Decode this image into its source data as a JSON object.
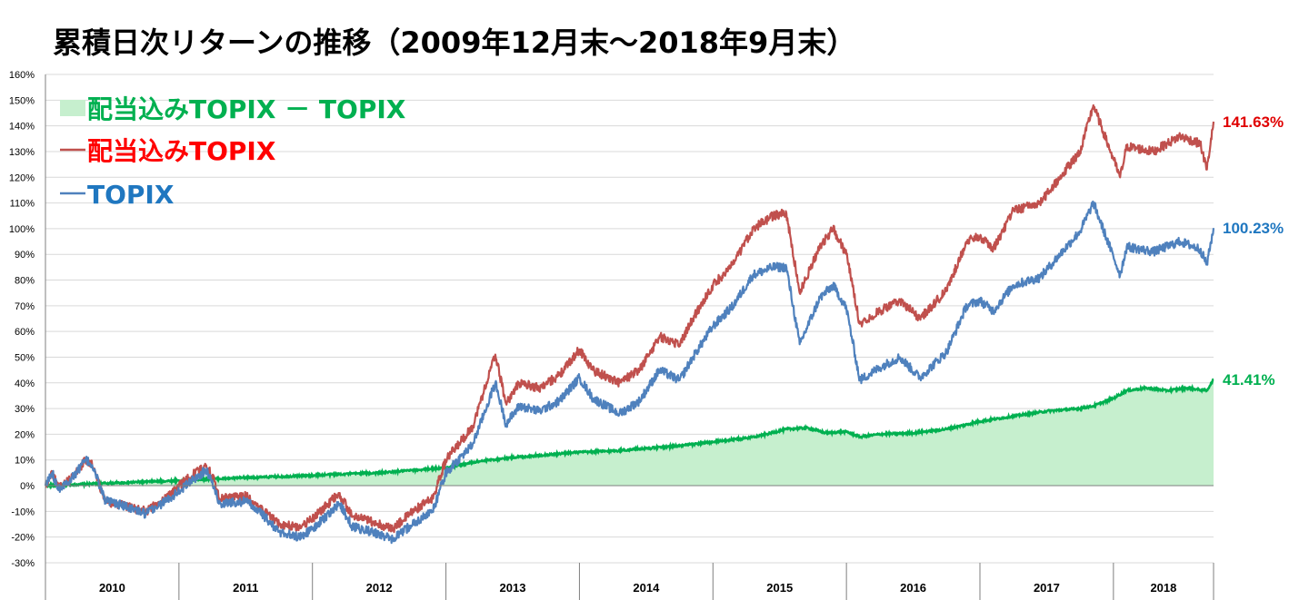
{
  "chart_data": {
    "type": "line",
    "title": "累積日次リターンの推移（2009年12月末～2018年9月末）",
    "yunit": "%",
    "ylim": [
      -30,
      160
    ],
    "ytick_step": 10,
    "yticks": [
      "160%",
      "150%",
      "140%",
      "130%",
      "120%",
      "110%",
      "100%",
      "90%",
      "80%",
      "70%",
      "60%",
      "50%",
      "40%",
      "30%",
      "20%",
      "10%",
      "0%",
      "-10%",
      "-20%",
      "-30%"
    ],
    "xlim": [
      2010.0,
      2018.75
    ],
    "year_labels": [
      "2010",
      "2011",
      "2012",
      "2013",
      "2014",
      "2015",
      "2016",
      "2017",
      "2018"
    ],
    "grid": true,
    "legend_position": "top-left",
    "series": [
      {
        "name": "配当込みTOPIX － TOPIX",
        "legend_label": "配当込みTOPIX － TOPIX",
        "style": "area",
        "color": "#00b050",
        "fill": "#c6efce",
        "end_label": "41.41%",
        "x": [
          2010.0,
          2010.25,
          2010.5,
          2010.75,
          2011.0,
          2011.25,
          2011.5,
          2011.75,
          2012.0,
          2012.25,
          2012.5,
          2012.75,
          2013.0,
          2013.25,
          2013.5,
          2013.75,
          2014.0,
          2014.25,
          2014.5,
          2014.75,
          2015.0,
          2015.25,
          2015.4,
          2015.55,
          2015.7,
          2015.85,
          2016.0,
          2016.1,
          2016.25,
          2016.5,
          2016.75,
          2017.0,
          2017.25,
          2017.5,
          2017.75,
          2017.85,
          2018.0,
          2018.1,
          2018.25,
          2018.4,
          2018.55,
          2018.7,
          2018.75
        ],
        "y": [
          0,
          0.5,
          1,
          1.5,
          2,
          2.6,
          3.1,
          3.5,
          4,
          4.6,
          5,
          6,
          7,
          9.5,
          11,
          12,
          13,
          13.5,
          14.5,
          15.5,
          17,
          18.5,
          20,
          22,
          22.5,
          20.5,
          21,
          19,
          20,
          20.5,
          22,
          25,
          27,
          29,
          30,
          31,
          34,
          37,
          38,
          37,
          38,
          37,
          41.41
        ]
      },
      {
        "name": "配当込みTOPIX",
        "legend_label": "配当込みTOPIX",
        "style": "line",
        "color": "#c0504d",
        "end_label": "141.63%",
        "x": [
          2010.0,
          2010.05,
          2010.1,
          2010.2,
          2010.3,
          2010.35,
          2010.45,
          2010.6,
          2010.75,
          2010.9,
          2011.0,
          2011.2,
          2011.25,
          2011.3,
          2011.5,
          2011.6,
          2011.75,
          2011.9,
          2012.0,
          2012.2,
          2012.3,
          2012.45,
          2012.6,
          2012.75,
          2012.9,
          2013.0,
          2013.2,
          2013.37,
          2013.45,
          2013.55,
          2013.7,
          2013.85,
          2014.0,
          2014.1,
          2014.3,
          2014.45,
          2014.6,
          2014.75,
          2014.85,
          2015.0,
          2015.15,
          2015.3,
          2015.45,
          2015.55,
          2015.65,
          2015.8,
          2015.9,
          2016.0,
          2016.1,
          2016.25,
          2016.4,
          2016.55,
          2016.75,
          2016.9,
          2017.0,
          2017.1,
          2017.25,
          2017.45,
          2017.6,
          2017.75,
          2017.85,
          2018.0,
          2018.05,
          2018.1,
          2018.3,
          2018.5,
          2018.65,
          2018.7,
          2018.75
        ],
        "y": [
          0,
          5,
          -1,
          3,
          10,
          8,
          -6,
          -8,
          -10,
          -5,
          0,
          8,
          4,
          -5,
          -4,
          -8,
          -15,
          -16,
          -13,
          -3,
          -12,
          -14,
          -17,
          -10,
          -5,
          10,
          23,
          51,
          32,
          40,
          38,
          43,
          53,
          45,
          40,
          45,
          58,
          55,
          65,
          78,
          86,
          100,
          105,
          106,
          75,
          93,
          100,
          90,
          63,
          68,
          72,
          65,
          76,
          95,
          97,
          92,
          107,
          110,
          120,
          130,
          148,
          127,
          120,
          132,
          130,
          136,
          133,
          123,
          141.63
        ]
      },
      {
        "name": "TOPIX",
        "legend_label": "TOPIX",
        "style": "line",
        "color": "#4f81bd",
        "end_label": "100.23%",
        "x": [
          2010.0,
          2010.05,
          2010.1,
          2010.2,
          2010.3,
          2010.35,
          2010.45,
          2010.6,
          2010.75,
          2010.9,
          2011.0,
          2011.2,
          2011.25,
          2011.3,
          2011.5,
          2011.6,
          2011.75,
          2011.9,
          2012.0,
          2012.2,
          2012.3,
          2012.45,
          2012.6,
          2012.75,
          2012.9,
          2013.0,
          2013.2,
          2013.37,
          2013.45,
          2013.55,
          2013.7,
          2013.85,
          2014.0,
          2014.1,
          2014.3,
          2014.45,
          2014.6,
          2014.75,
          2014.85,
          2015.0,
          2015.15,
          2015.3,
          2015.45,
          2015.55,
          2015.65,
          2015.8,
          2015.9,
          2016.0,
          2016.1,
          2016.25,
          2016.4,
          2016.55,
          2016.75,
          2016.9,
          2017.0,
          2017.1,
          2017.25,
          2017.45,
          2017.6,
          2017.75,
          2017.85,
          2018.0,
          2018.05,
          2018.1,
          2018.3,
          2018.5,
          2018.65,
          2018.7,
          2018.75
        ],
        "y": [
          0,
          5,
          -1,
          3,
          10,
          8,
          -6,
          -8,
          -11,
          -6,
          -2,
          6,
          2,
          -7,
          -6,
          -10,
          -18,
          -20,
          -17,
          -7,
          -16,
          -18,
          -21,
          -15,
          -10,
          5,
          16,
          40,
          24,
          31,
          29,
          33,
          42,
          34,
          28,
          33,
          45,
          41,
          50,
          62,
          70,
          82,
          85,
          85,
          55,
          73,
          78,
          69,
          41,
          46,
          50,
          42,
          52,
          70,
          72,
          68,
          78,
          81,
          90,
          99,
          110,
          89,
          82,
          93,
          91,
          95,
          92,
          86,
          100.23
        ]
      }
    ]
  }
}
